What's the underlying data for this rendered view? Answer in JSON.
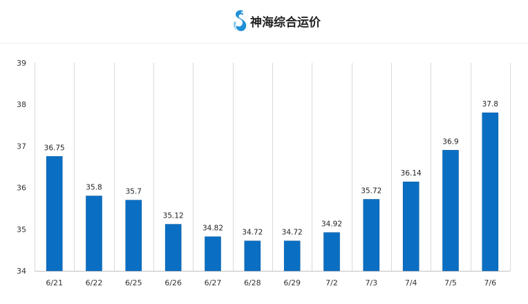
{
  "header": {
    "brand_name": "神海综合运价",
    "logo_icon": "seahorse-logo-icon"
  },
  "colors": {
    "bar": "#0a6fc2",
    "bar_edge": "#0b5ea6",
    "grid": "#d9d9d9",
    "axis": "#bfbfbf",
    "logo_main": "#1f8fd8",
    "logo_light": "#7cc4ee"
  },
  "chart_data": {
    "type": "bar",
    "title": "",
    "xlabel": "",
    "ylabel": "",
    "categories": [
      "6/21",
      "6/22",
      "6/25",
      "6/26",
      "6/27",
      "6/28",
      "6/29",
      "7/2",
      "7/3",
      "7/4",
      "7/5",
      "7/6"
    ],
    "values": [
      36.75,
      35.8,
      35.7,
      35.12,
      34.82,
      34.72,
      34.72,
      34.92,
      35.72,
      36.14,
      36.9,
      37.8
    ],
    "data_labels": [
      "36.75",
      "35.8",
      "35.7",
      "35.12",
      "34.82",
      "34.72",
      "34.72",
      "34.92",
      "35.72",
      "36.14",
      "36.9",
      "37.8"
    ],
    "ylim": [
      34,
      39
    ],
    "yticks": [
      34,
      35,
      36,
      37,
      38,
      39
    ],
    "grid": "vertical",
    "legend": "none"
  }
}
